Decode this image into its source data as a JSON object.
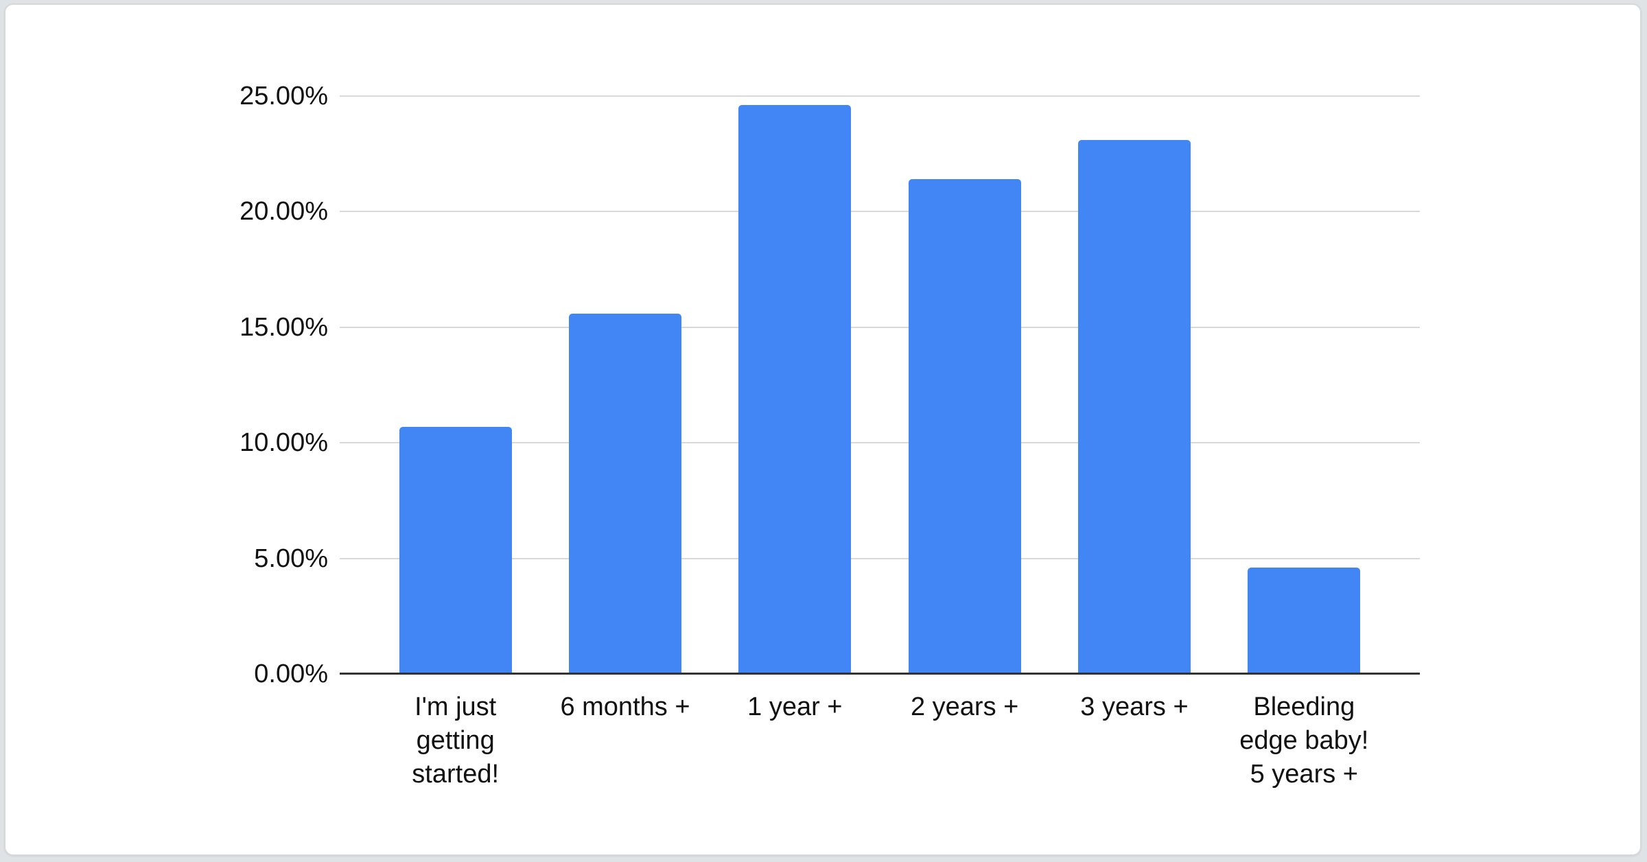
{
  "page": {
    "background_color": "#dfe3e6",
    "card_background_color": "#ffffff",
    "card_border_color": "#d5d9dc"
  },
  "chart_data": {
    "type": "bar",
    "title": "",
    "xlabel": "",
    "ylabel": "",
    "categories": [
      "I'm just getting started!",
      "6 months +",
      "1 year +",
      "2 years +",
      "3 years +",
      "Bleeding edge baby! 5 years +"
    ],
    "category_display_lines": [
      [
        "I'm just",
        "getting",
        "started!"
      ],
      [
        "6 months +"
      ],
      [
        "1 year +"
      ],
      [
        "2 years +"
      ],
      [
        "3 years +"
      ],
      [
        "Bleeding",
        "edge baby!",
        "5 years +"
      ]
    ],
    "values": [
      10.7,
      15.6,
      24.6,
      21.4,
      23.1,
      4.6
    ],
    "value_unit": "%",
    "y_ticks": [
      0,
      5,
      10,
      15,
      20,
      25
    ],
    "y_tick_labels": [
      "0.00%",
      "5.00%",
      "10.00%",
      "15.00%",
      "20.00%",
      "25.00%"
    ],
    "ylim": [
      0,
      26.3
    ],
    "grid": true,
    "legend": "none",
    "bar_color": "#4285F4",
    "gridline_color": "#d9d9d9",
    "axis_line_color": "#333333",
    "label_color": "#111111"
  }
}
